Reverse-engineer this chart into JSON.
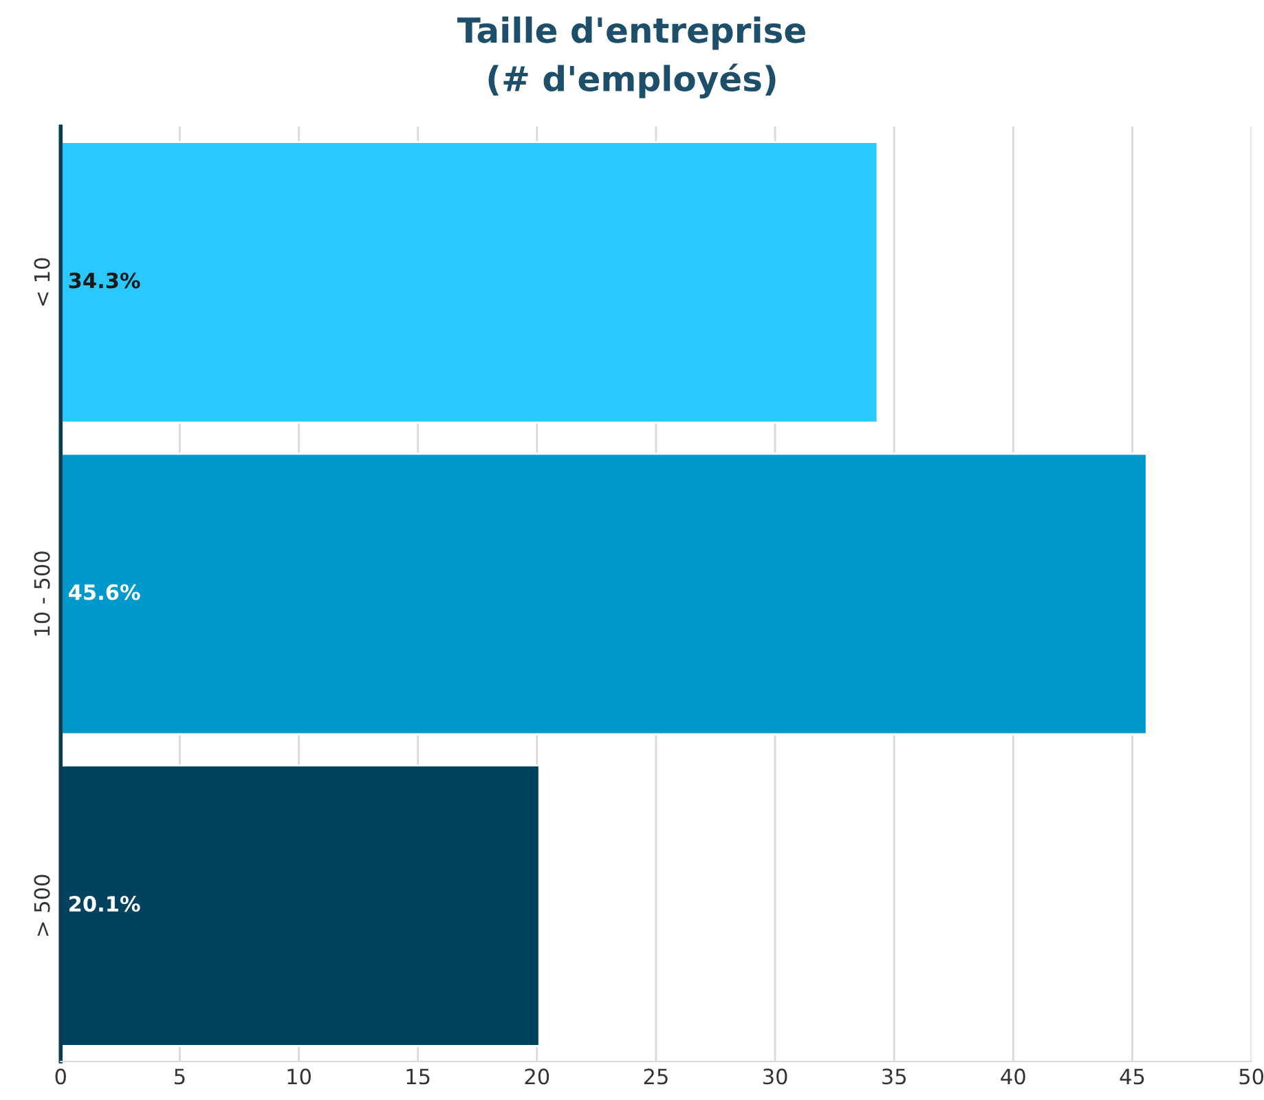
{
  "chart_data": {
    "type": "bar",
    "orientation": "horizontal",
    "title": "Taille d'entreprise\n(# d'employés)",
    "categories": [
      "< 10",
      "10 - 500",
      "> 500"
    ],
    "values": [
      34.3,
      45.6,
      20.1
    ],
    "colors": [
      "#29c8ff",
      "#0099cc",
      "#01435f"
    ],
    "value_labels": [
      "34.3%",
      "45.6%",
      "20.1%"
    ],
    "xlim": [
      0,
      50
    ],
    "xticks": [
      0,
      5,
      10,
      15,
      20,
      25,
      30,
      35,
      40,
      45,
      50
    ],
    "grid": "x",
    "legend": false
  }
}
